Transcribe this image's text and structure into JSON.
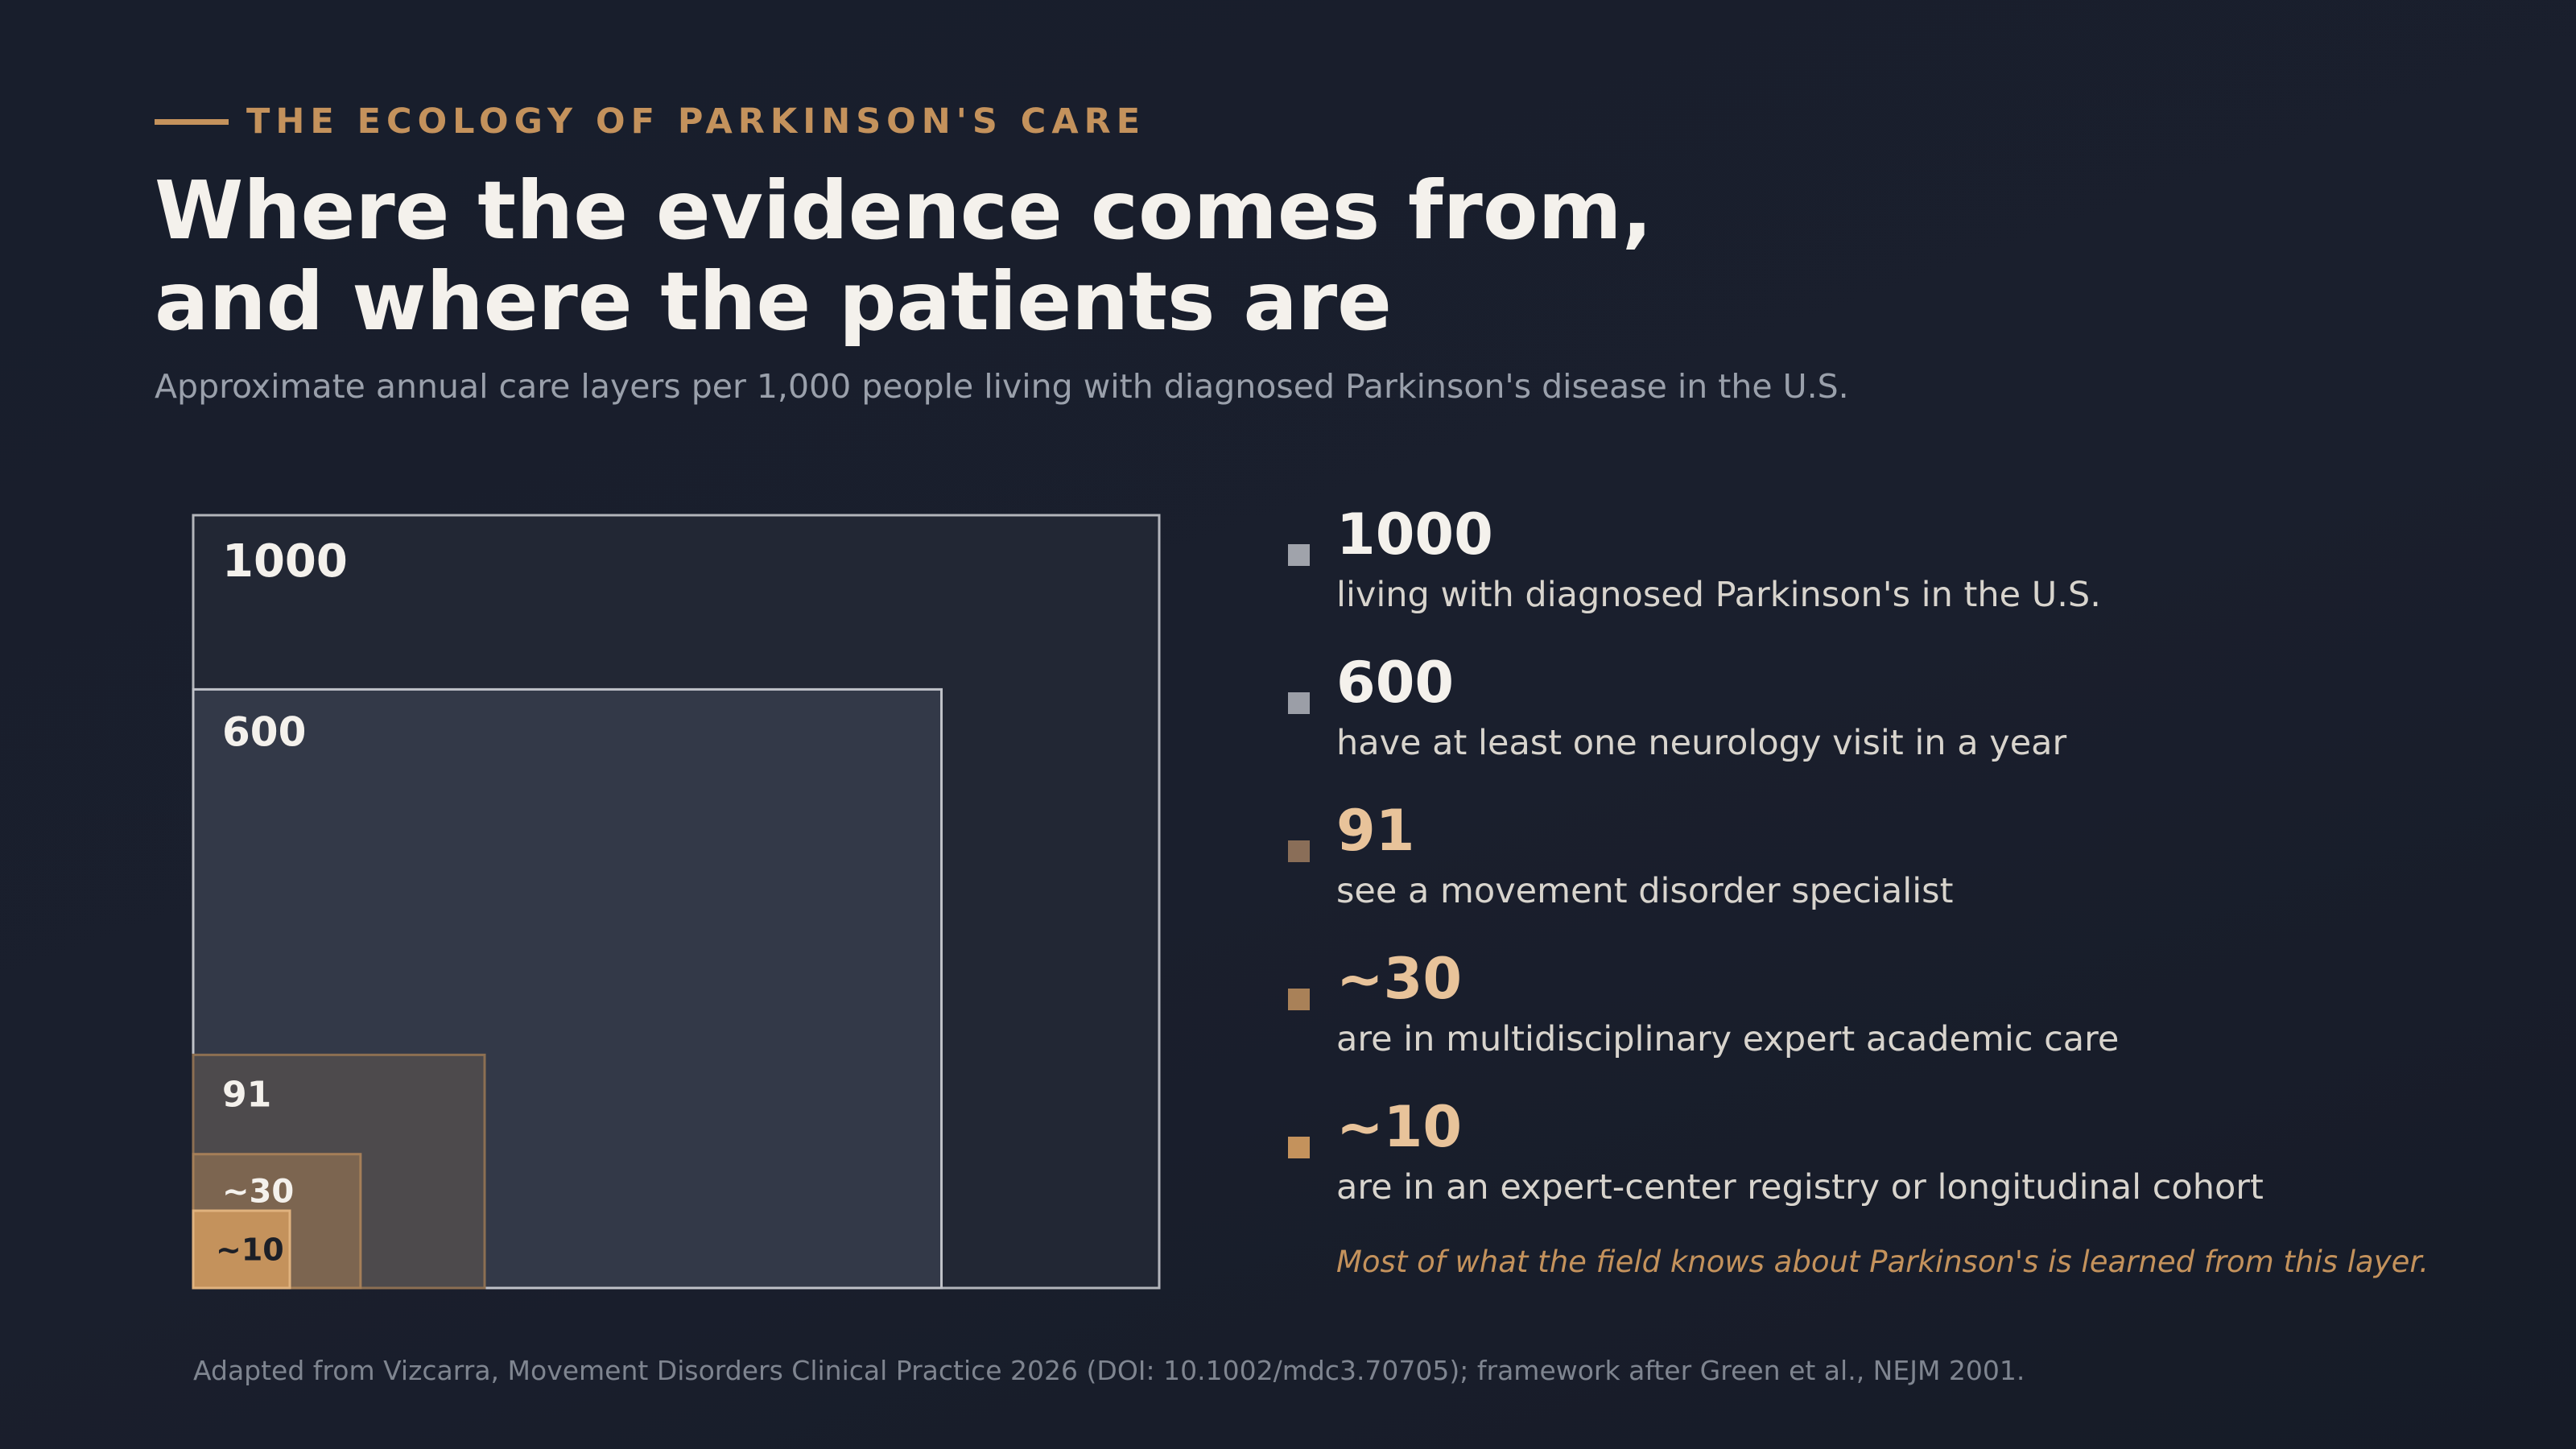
{
  "header": {
    "eyebrow": "THE ECOLOGY OF PARKINSON'S CARE",
    "title_line1": "Where the evidence comes from,",
    "title_line2": "and where the patients are",
    "subtitle": "Approximate annual care layers per 1,000 people living with diagnosed Parkinson's disease in the U.S."
  },
  "chart_data": {
    "type": "nested-area",
    "title": "Where the evidence comes from, and where the patients are",
    "subtitle": "Approximate annual care layers per 1,000 people living with diagnosed Parkinson's disease in the U.S.",
    "unit": "people per 1,000",
    "layers": [
      {
        "value": 1000,
        "label": "1000",
        "description": "living with diagnosed Parkinson's in the U.S.",
        "fill": "#222734",
        "stroke": "#b3b5bb",
        "swatch": "#a0a3ab",
        "value_color": "#f4f1ec",
        "label_color": "#f4f1ec"
      },
      {
        "value": 600,
        "label": "600",
        "description": "have at least one neurology visit in a year",
        "fill": "#333948",
        "stroke": "#c0c2c8",
        "swatch": "#9b9ea7",
        "value_color": "#f4f1ec",
        "label_color": "#f4f1ec"
      },
      {
        "value": 91,
        "label": "91",
        "description": "see a movement disorder specialist",
        "fill": "#4d4a4c",
        "stroke": "#8c6f52",
        "swatch": "#8a6e58",
        "value_color": "#e8c39a",
        "label_color": "#f4f1ec"
      },
      {
        "value": 30,
        "label": "~30",
        "description": "are in multidisciplinary expert academic care",
        "fill": "#7c6550",
        "stroke": "#a57f58",
        "swatch": "#a98158",
        "value_color": "#e8c39a",
        "label_color": "#f4f1ec"
      },
      {
        "value": 10,
        "label": "~10",
        "description": "are in an expert-center registry or longitudinal cohort",
        "fill": "#c4925c",
        "stroke": "#e0b27e",
        "swatch": "#c4925c",
        "value_color": "#e8c39a",
        "label_color": "#1c1f27"
      }
    ]
  },
  "note": "Most of what the field knows about Parkinson's is learned from this layer.",
  "source": "Adapted from Vizcarra, Movement Disorders Clinical Practice 2026 (DOI: 10.1002/mdc3.70705); framework after Green et al., NEJM 2001."
}
